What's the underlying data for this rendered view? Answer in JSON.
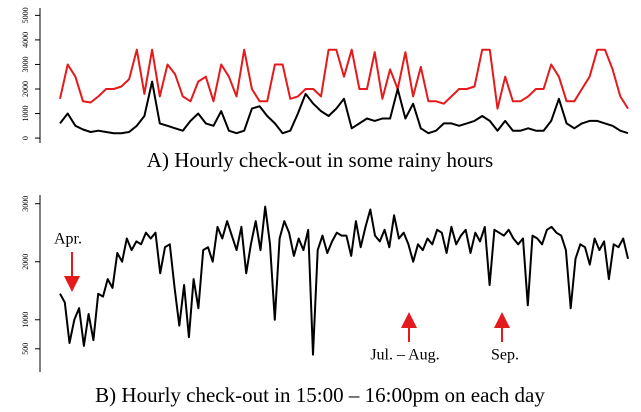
{
  "chart_data": [
    {
      "type": "line",
      "title": "A) Hourly check-out in some rainy hours",
      "ylim": [
        -200,
        5300
      ],
      "yticks": [
        0,
        1000,
        2000,
        3000,
        4000,
        5000
      ],
      "series": [
        {
          "color": "#e41a1c",
          "values": [
            1600,
            3000,
            2500,
            1500,
            1450,
            1700,
            2000,
            2000,
            2100,
            2400,
            3600,
            1800,
            3600,
            1700,
            3000,
            2600,
            1700,
            1500,
            2300,
            2500,
            1500,
            3000,
            2500,
            1700,
            3600,
            2000,
            1500,
            1500,
            3000,
            3000,
            1600,
            1700,
            2000,
            2000,
            1700,
            3600,
            3600,
            2500,
            3600,
            2000,
            2000,
            3500,
            1600,
            2800,
            2000,
            3500,
            1700,
            2900,
            1500,
            1500,
            1400,
            1700,
            2000,
            2000,
            2100,
            3600,
            3600,
            1200,
            2500,
            1500,
            1500,
            1700,
            2000,
            2000,
            3000,
            2500,
            1500,
            1500,
            2000,
            2500,
            3600,
            3600,
            2800,
            1700,
            1200
          ]
        },
        {
          "color": "#000000",
          "values": [
            600,
            1000,
            500,
            350,
            250,
            300,
            250,
            200,
            200,
            250,
            500,
            900,
            2300,
            600,
            500,
            400,
            300,
            700,
            1000,
            600,
            500,
            1100,
            300,
            200,
            300,
            1200,
            1300,
            900,
            600,
            200,
            300,
            1000,
            1800,
            1400,
            1100,
            900,
            1200,
            1600,
            400,
            600,
            800,
            700,
            800,
            800,
            2000,
            800,
            1400,
            400,
            200,
            300,
            600,
            600,
            500,
            600,
            700,
            900,
            700,
            300,
            700,
            300,
            300,
            400,
            300,
            300,
            700,
            1600,
            600,
            400,
            600,
            700,
            700,
            600,
            500,
            300,
            200
          ]
        }
      ]
    },
    {
      "type": "line",
      "title": "B) Hourly check-out in 15:00 – 16:00pm on each day",
      "ylim": [
        100,
        3150
      ],
      "yticks": [
        500,
        1000,
        2000,
        3000
      ],
      "annotations": [
        "Apr.",
        "Jul. – Aug.",
        "Sep."
      ],
      "series": [
        {
          "color": "#000000",
          "values": [
            1450,
            1300,
            600,
            1000,
            1200,
            550,
            1100,
            650,
            1450,
            1400,
            1700,
            1550,
            2150,
            2000,
            2400,
            2200,
            2350,
            2300,
            2500,
            2400,
            2500,
            1800,
            2250,
            2300,
            1550,
            900,
            1600,
            700,
            1700,
            1200,
            2200,
            2250,
            2000,
            2600,
            2400,
            2700,
            2450,
            2200,
            2600,
            1800,
            2300,
            2700,
            2200,
            2950,
            2300,
            1000,
            2400,
            2700,
            2500,
            2100,
            2400,
            2200,
            2550,
            400,
            2200,
            2450,
            2150,
            2350,
            2500,
            2450,
            2450,
            2100,
            2700,
            2250,
            2600,
            2900,
            2450,
            2350,
            2550,
            2250,
            2800,
            2400,
            2500,
            2300,
            2000,
            2300,
            2200,
            2400,
            2300,
            2550,
            2500,
            2150,
            2600,
            2300,
            2450,
            2550,
            2150,
            2500,
            2350,
            2600,
            1600,
            2550,
            2500,
            2450,
            2550,
            2400,
            2300,
            2400,
            1250,
            2450,
            2400,
            2300,
            2550,
            2600,
            2500,
            2450,
            2200,
            1200,
            2050,
            2300,
            2250,
            1950,
            2400,
            2200,
            2350,
            1700,
            2300,
            2250,
            2400,
            2050
          ]
        }
      ]
    }
  ]
}
